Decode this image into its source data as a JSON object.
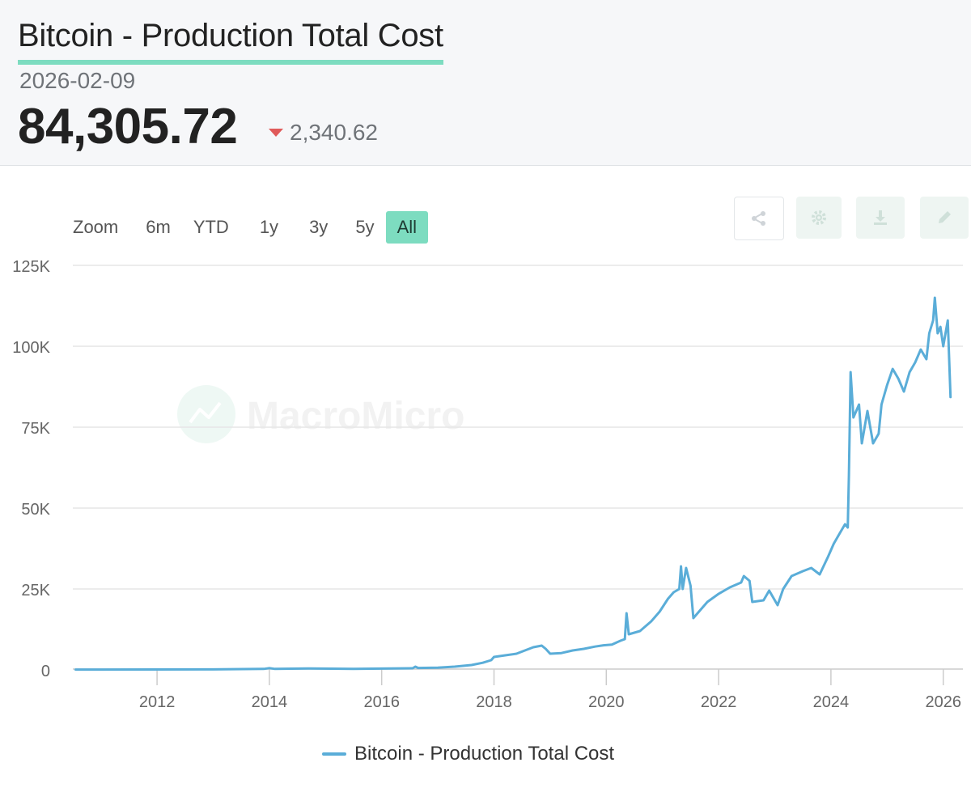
{
  "header": {
    "title": "Bitcoin - Production Total Cost",
    "date": "2026-02-09",
    "value": "84,305.72",
    "change": "2,340.62"
  },
  "range_selector": {
    "label": "Zoom",
    "options": [
      "6m",
      "YTD",
      "1y",
      "3y",
      "5y",
      "All"
    ],
    "selected": "All"
  },
  "toolbar": {
    "icons": [
      "share-icon",
      "gear-icon",
      "download-icon",
      "edit-icon"
    ]
  },
  "watermark": "MacroMicro",
  "colors": {
    "series": "#5aadd8",
    "accent": "#7ddcc0",
    "down": "#e05a5a"
  },
  "chart_data": {
    "type": "line",
    "title": "Bitcoin - Production Total Cost",
    "xlabel": "",
    "ylabel": "",
    "xlim": [
      2010.5,
      2026.35
    ],
    "ylim": [
      0,
      125000
    ],
    "x_ticks": [
      2012,
      2014,
      2016,
      2018,
      2020,
      2022,
      2024,
      2026
    ],
    "x_tick_labels": [
      "2012",
      "2014",
      "2016",
      "2018",
      "2020",
      "2022",
      "2024",
      "2026"
    ],
    "y_ticks": [
      0,
      25000,
      50000,
      75000,
      100000,
      125000
    ],
    "y_tick_labels": [
      "0",
      "25K",
      "50K",
      "75K",
      "100K",
      "125K"
    ],
    "grid": "horizontal",
    "legend_position": "bottom-center",
    "series": [
      {
        "name": "Bitcoin - Production Total Cost",
        "points": [
          [
            2010.55,
            100
          ],
          [
            2012.0,
            120
          ],
          [
            2013.0,
            150
          ],
          [
            2013.9,
            300
          ],
          [
            2014.0,
            550
          ],
          [
            2014.1,
            300
          ],
          [
            2014.7,
            450
          ],
          [
            2015.5,
            300
          ],
          [
            2016.0,
            400
          ],
          [
            2016.55,
            500
          ],
          [
            2016.6,
            1000
          ],
          [
            2016.65,
            600
          ],
          [
            2017.0,
            700
          ],
          [
            2017.3,
            1000
          ],
          [
            2017.6,
            1500
          ],
          [
            2017.8,
            2200
          ],
          [
            2017.95,
            3000
          ],
          [
            2018.0,
            4000
          ],
          [
            2018.2,
            4500
          ],
          [
            2018.4,
            5000
          ],
          [
            2018.55,
            6000
          ],
          [
            2018.7,
            7000
          ],
          [
            2018.85,
            7500
          ],
          [
            2018.92,
            6500
          ],
          [
            2019.0,
            5000
          ],
          [
            2019.2,
            5200
          ],
          [
            2019.4,
            6000
          ],
          [
            2019.6,
            6500
          ],
          [
            2019.8,
            7200
          ],
          [
            2019.95,
            7600
          ],
          [
            2020.1,
            7800
          ],
          [
            2020.25,
            9000
          ],
          [
            2020.33,
            9500
          ],
          [
            2020.36,
            17500
          ],
          [
            2020.4,
            11000
          ],
          [
            2020.6,
            12000
          ],
          [
            2020.8,
            15000
          ],
          [
            2020.95,
            18000
          ],
          [
            2021.1,
            22000
          ],
          [
            2021.2,
            24000
          ],
          [
            2021.3,
            25000
          ],
          [
            2021.33,
            32000
          ],
          [
            2021.36,
            25000
          ],
          [
            2021.42,
            31500
          ],
          [
            2021.5,
            26000
          ],
          [
            2021.55,
            16000
          ],
          [
            2021.65,
            18000
          ],
          [
            2021.8,
            21000
          ],
          [
            2022.0,
            23500
          ],
          [
            2022.2,
            25500
          ],
          [
            2022.4,
            27000
          ],
          [
            2022.45,
            29000
          ],
          [
            2022.55,
            27500
          ],
          [
            2022.6,
            21000
          ],
          [
            2022.8,
            21500
          ],
          [
            2022.9,
            24500
          ],
          [
            2023.05,
            20000
          ],
          [
            2023.15,
            25000
          ],
          [
            2023.3,
            29000
          ],
          [
            2023.5,
            30500
          ],
          [
            2023.65,
            31500
          ],
          [
            2023.8,
            29500
          ],
          [
            2023.95,
            35000
          ],
          [
            2024.05,
            39000
          ],
          [
            2024.15,
            42000
          ],
          [
            2024.25,
            45000
          ],
          [
            2024.3,
            44000
          ],
          [
            2024.32,
            60000
          ],
          [
            2024.35,
            92000
          ],
          [
            2024.4,
            78000
          ],
          [
            2024.5,
            82000
          ],
          [
            2024.55,
            70000
          ],
          [
            2024.65,
            80000
          ],
          [
            2024.75,
            70000
          ],
          [
            2024.85,
            73000
          ],
          [
            2024.9,
            82000
          ],
          [
            2025.0,
            88000
          ],
          [
            2025.1,
            93000
          ],
          [
            2025.2,
            90000
          ],
          [
            2025.3,
            86000
          ],
          [
            2025.4,
            92000
          ],
          [
            2025.5,
            95000
          ],
          [
            2025.6,
            99000
          ],
          [
            2025.7,
            96000
          ],
          [
            2025.75,
            104000
          ],
          [
            2025.82,
            108000
          ],
          [
            2025.85,
            115000
          ],
          [
            2025.9,
            104000
          ],
          [
            2025.95,
            106000
          ],
          [
            2026.0,
            100000
          ],
          [
            2026.05,
            105000
          ],
          [
            2026.08,
            108000
          ],
          [
            2026.11,
            94000
          ],
          [
            2026.13,
            84306
          ]
        ]
      }
    ]
  }
}
